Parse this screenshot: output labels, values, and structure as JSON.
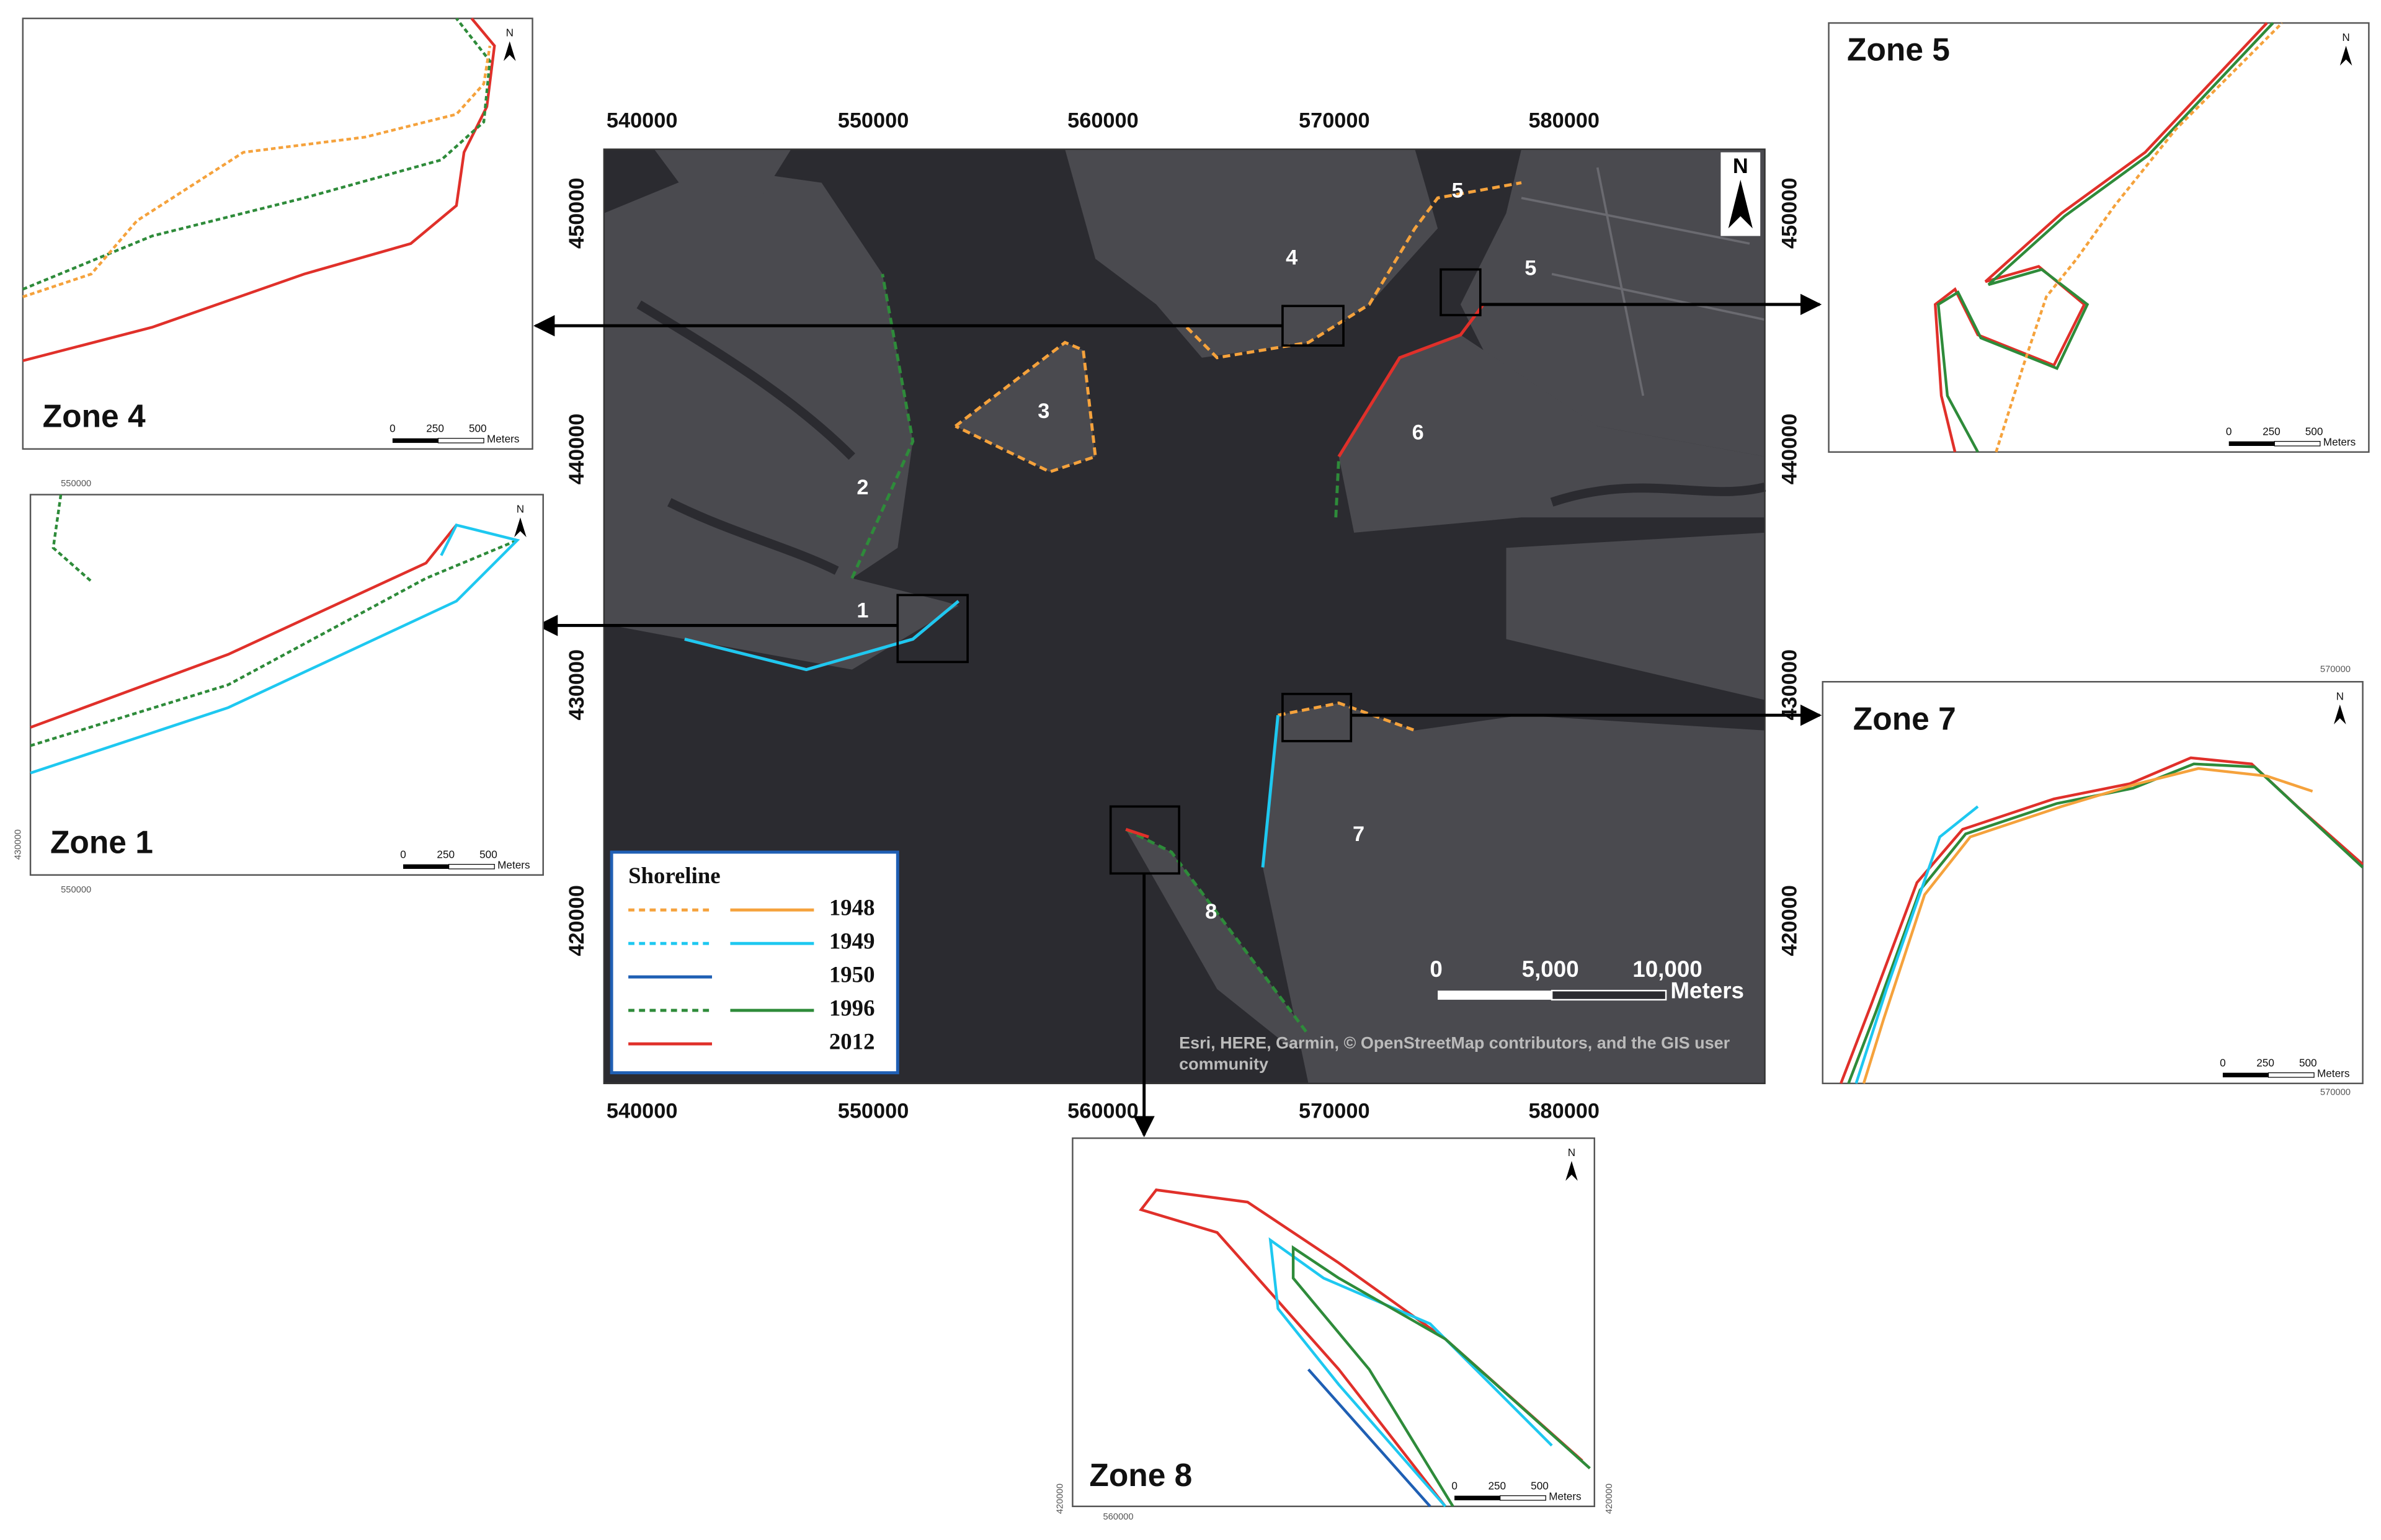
{
  "main_map": {
    "x_labels": [
      "540000",
      "550000",
      "560000",
      "570000",
      "580000"
    ],
    "y_labels": [
      "450000",
      "440000",
      "430000",
      "420000"
    ],
    "area_labels": [
      "1",
      "2",
      "3",
      "4",
      "5",
      "5",
      "6",
      "7",
      "8"
    ],
    "north": "N",
    "scale_bar": {
      "ticks": [
        "0",
        "5,000",
        "10,000"
      ],
      "unit": "Meters"
    },
    "attribution": "Esri, HERE, Garmin, © OpenStreetMap contributors, and the GIS user community"
  },
  "legend": {
    "title": "Shoreline",
    "entries": [
      {
        "label": "1948",
        "color": "#f5a23c",
        "styles": [
          "dashed",
          "solid"
        ]
      },
      {
        "label": "1949",
        "color": "#1ec8f0",
        "styles": [
          "dashed",
          "solid"
        ]
      },
      {
        "label": "1950",
        "color": "#1f5fb4",
        "styles": [
          "solid"
        ]
      },
      {
        "label": "1996",
        "color": "#2e8b3a",
        "styles": [
          "dashed",
          "solid"
        ]
      },
      {
        "label": "2012",
        "color": "#e0302a",
        "styles": [
          "solid"
        ]
      }
    ]
  },
  "insets": [
    {
      "title": "Zone 4",
      "scale": [
        "0",
        "250",
        "500"
      ],
      "unit": "Meters",
      "north": "N",
      "coords": []
    },
    {
      "title": "Zone 1",
      "scale": [
        "0",
        "250",
        "500"
      ],
      "unit": "Meters",
      "north": "N",
      "coords": [
        "550000",
        "550000",
        "430000"
      ]
    },
    {
      "title": "Zone 5",
      "scale": [
        "0",
        "250",
        "500"
      ],
      "unit": "Meters",
      "north": "N",
      "coords": []
    },
    {
      "title": "Zone 7",
      "scale": [
        "0",
        "250",
        "500"
      ],
      "unit": "Meters",
      "north": "N",
      "coords": [
        "570000",
        "570000"
      ]
    },
    {
      "title": "Zone 8",
      "scale": [
        "0",
        "250",
        "500"
      ],
      "unit": "Meters",
      "north": "N",
      "coords": [
        "560000",
        "420000",
        "420000"
      ]
    }
  ]
}
